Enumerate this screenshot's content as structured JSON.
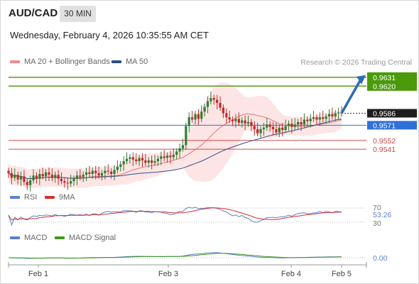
{
  "header": {
    "symbol": "AUD/CAD",
    "timeframe": "30 MIN",
    "datetime": "Wednesday, February 4, 2026 10:35:55 AM CET"
  },
  "legend": {
    "ma20": "MA 20 + Bollinger Bands",
    "ma50": "MA 50",
    "credit": "Research © 2026 Trading Central"
  },
  "colors": {
    "green_line": "#5a9a1f",
    "blue_line": "#3d6ac9",
    "red_line": "#d24a4a",
    "candle_up": "#2e7d32",
    "candle_down": "#c62828",
    "bollinger_fill": "#fde0e0",
    "ma20": "#e57373",
    "ma50": "#2f4f8a",
    "rsi": "#5b7fd1",
    "rsi_ma": "#d32f2f",
    "macd": "#5b7fd1",
    "macd_signal": "#3e9a18"
  },
  "chart_data": [
    {
      "type": "candlestick",
      "title": "AUD/CAD",
      "timeframe": "30 MIN",
      "ylim": [
        0.9494,
        0.9638
      ],
      "x_ticks": [
        "Feb 1",
        "Feb 3",
        "Feb 4",
        "Feb 5"
      ],
      "levels": [
        {
          "label": "0.9631",
          "value": 0.9631,
          "kind": "target",
          "color": "#5a9a1f"
        },
        {
          "label": "0.9620",
          "value": 0.962,
          "kind": "resistance",
          "color": "#5a9a1f"
        },
        {
          "label": "0.9586",
          "value": 0.9586,
          "kind": "last_price",
          "color": "#222222"
        },
        {
          "label": "0.9571",
          "value": 0.9571,
          "kind": "pivot",
          "color": "#3d6ac9"
        },
        {
          "label": "0.9552",
          "value": 0.9552,
          "kind": "support",
          "color": "#d24a4a"
        },
        {
          "label": "0.9541",
          "value": 0.9541,
          "kind": "support",
          "color": "#d24a4a"
        }
      ],
      "close_series": [
        0.9511,
        0.9505,
        0.9509,
        0.9503,
        0.9507,
        0.95,
        0.9496,
        0.9502,
        0.9508,
        0.9504,
        0.951,
        0.9507,
        0.9512,
        0.9509,
        0.9505,
        0.9509,
        0.9504,
        0.9501,
        0.9499,
        0.9498,
        0.9501,
        0.9504,
        0.9508,
        0.9506,
        0.9509,
        0.9512,
        0.951,
        0.9514,
        0.9511,
        0.9508,
        0.9511,
        0.9514,
        0.9513,
        0.951,
        0.9515,
        0.9519,
        0.9522,
        0.9526,
        0.9529,
        0.9531,
        0.9528,
        0.9526,
        0.953,
        0.9527,
        0.9524,
        0.9527,
        0.9524,
        0.9526,
        0.9529,
        0.9532,
        0.953,
        0.9533,
        0.9531,
        0.9534,
        0.9538,
        0.9542,
        0.9546,
        0.957,
        0.9581,
        0.9578,
        0.9585,
        0.9579,
        0.9588,
        0.9594,
        0.9601,
        0.9605,
        0.9603,
        0.9599,
        0.9593,
        0.9586,
        0.9581,
        0.9578,
        0.9576,
        0.9579,
        0.9574,
        0.9577,
        0.9573,
        0.9575,
        0.957,
        0.9566,
        0.9561,
        0.9566,
        0.9568,
        0.9572,
        0.9569,
        0.9566,
        0.9562,
        0.9568,
        0.9565,
        0.957,
        0.9573,
        0.9569,
        0.9572,
        0.9575,
        0.9572,
        0.9578,
        0.9576,
        0.9579,
        0.9581,
        0.9578,
        0.9581,
        0.9579,
        0.9582,
        0.9585,
        0.9582,
        0.9586,
        0.9587,
        0.9586
      ],
      "projection": {
        "from": 0.9586,
        "to": 0.9631
      }
    },
    {
      "type": "line",
      "title": "RSI",
      "series": [
        {
          "name": "RSI"
        },
        {
          "name": "9MA"
        }
      ],
      "levels": [
        70,
        30
      ],
      "y_ticks": [
        "70",
        "30"
      ],
      "last_value": "53.26"
    },
    {
      "type": "line",
      "title": "MACD",
      "series": [
        {
          "name": "MACD"
        },
        {
          "name": "MACD Signal"
        }
      ],
      "last_value": "0.00"
    }
  ]
}
